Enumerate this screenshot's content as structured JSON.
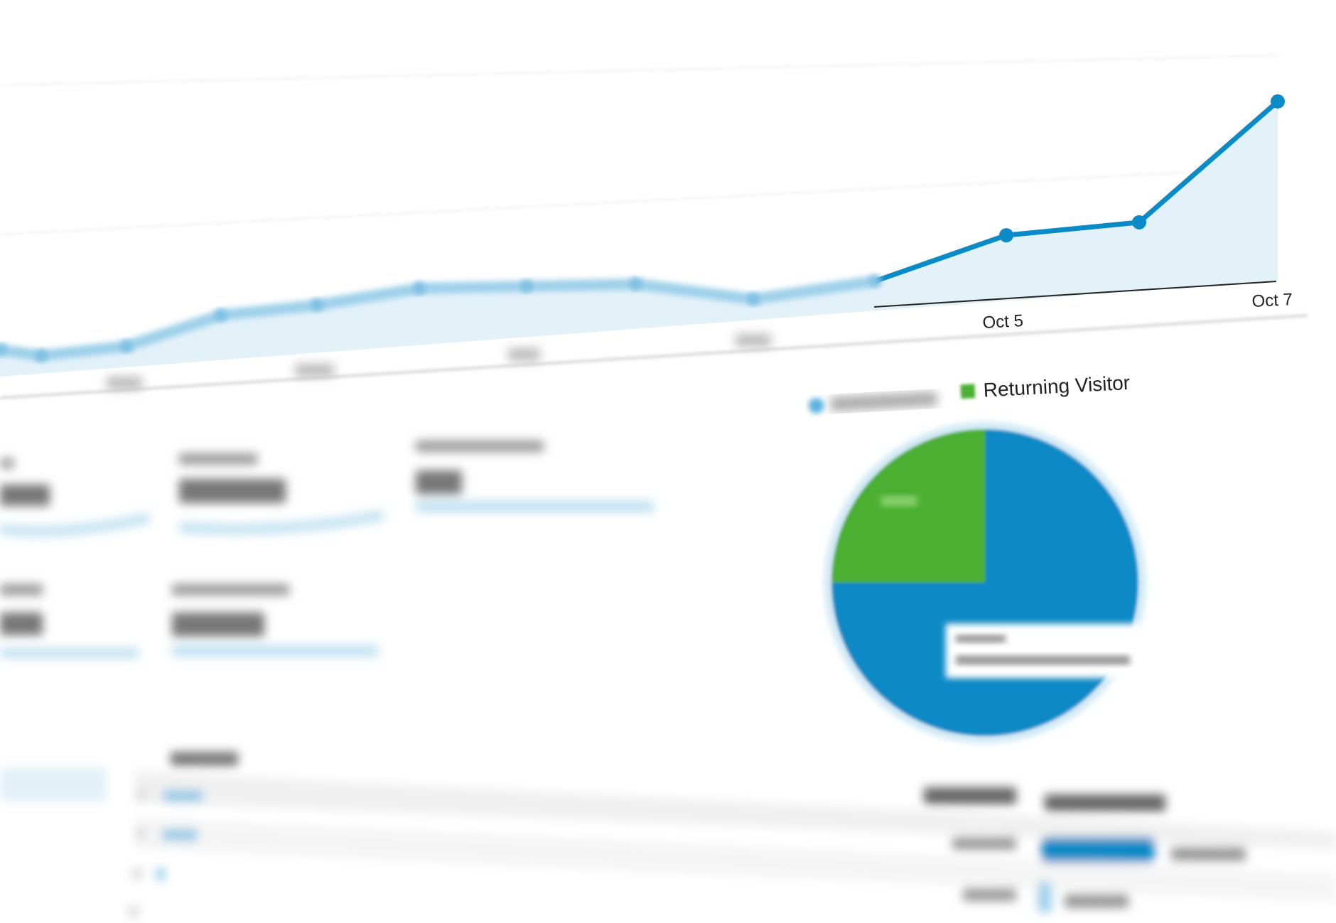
{
  "chart_data": [
    {
      "type": "line",
      "x_tick_labels": [
        "Oct 5",
        "Oct 7"
      ],
      "values": [
        9,
        6,
        7,
        15,
        16,
        19,
        17,
        15,
        7,
        10,
        22,
        23,
        60
      ],
      "grid": true,
      "line_color": "#0a8ac6",
      "fill_color": "#e3f1f9"
    },
    {
      "type": "pie",
      "legend": [
        {
          "label": "Returning Visitor",
          "color": "#4cb031"
        }
      ],
      "slices": [
        {
          "value": 75,
          "color": "#0a8ac6"
        },
        {
          "value": 25,
          "color": "#4cb031"
        }
      ],
      "legend_placement": "top"
    }
  ],
  "colors": {
    "accent": "#0a8ac6",
    "green": "#4cb031",
    "light_blue": "#bfe0f1"
  }
}
